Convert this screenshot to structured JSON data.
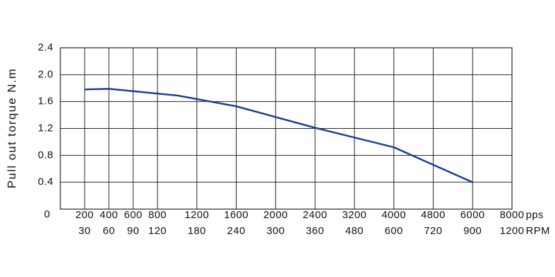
{
  "chart_data": {
    "type": "line",
    "ylabel": "Pull out torque N.m",
    "xlabel": "pps",
    "x2label": "RPM",
    "xlim": [
      0,
      8000
    ],
    "xticks": [
      200,
      400,
      600,
      800,
      1200,
      1600,
      2000,
      2400,
      3200,
      4000,
      4800,
      6000,
      8000
    ],
    "x2ticks": [
      30,
      60,
      90,
      120,
      180,
      240,
      300,
      360,
      480,
      600,
      720,
      900,
      1200
    ],
    "ylim": [
      0,
      2.4
    ],
    "yticks": [
      0,
      0.4,
      0.8,
      1.2,
      1.6,
      {
        "value": 2,
        "label": "2.0"
      },
      2.4
    ],
    "grid": true,
    "series": [
      {
        "color": "#1c3f94",
        "x": [
          200,
          400,
          1000,
          1600,
          2400,
          4000,
          6000
        ],
        "values": [
          1.78,
          1.79,
          1.69,
          1.53,
          1.21,
          0.92,
          0.4
        ]
      }
    ]
  }
}
